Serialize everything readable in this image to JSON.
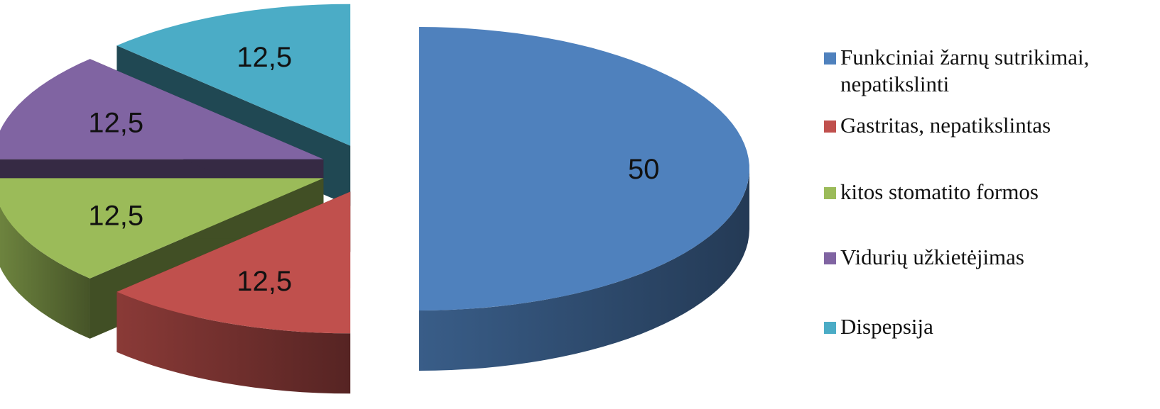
{
  "chart_data": {
    "type": "pie",
    "title": "",
    "slices": [
      {
        "label": "Funkciniai žarnų sutrikimai, nepatikslinti",
        "value": 50,
        "value_label": "50",
        "color": "#4F81BD"
      },
      {
        "label": "Gastritas, nepatikslintas",
        "value": 12.5,
        "value_label": "12,5",
        "color": "#C0504D"
      },
      {
        "label": "kitos stomatito formos",
        "value": 12.5,
        "value_label": "12,5",
        "color": "#9BBB59"
      },
      {
        "label": "Vidurių užkietėjimas",
        "value": 12.5,
        "value_label": "12,5",
        "color": "#8064A2"
      },
      {
        "label": "Dispepsija",
        "value": 12.5,
        "value_label": "12,5",
        "color": "#4BACC6"
      }
    ],
    "legend_position": "right",
    "style": "3d-exploded"
  }
}
